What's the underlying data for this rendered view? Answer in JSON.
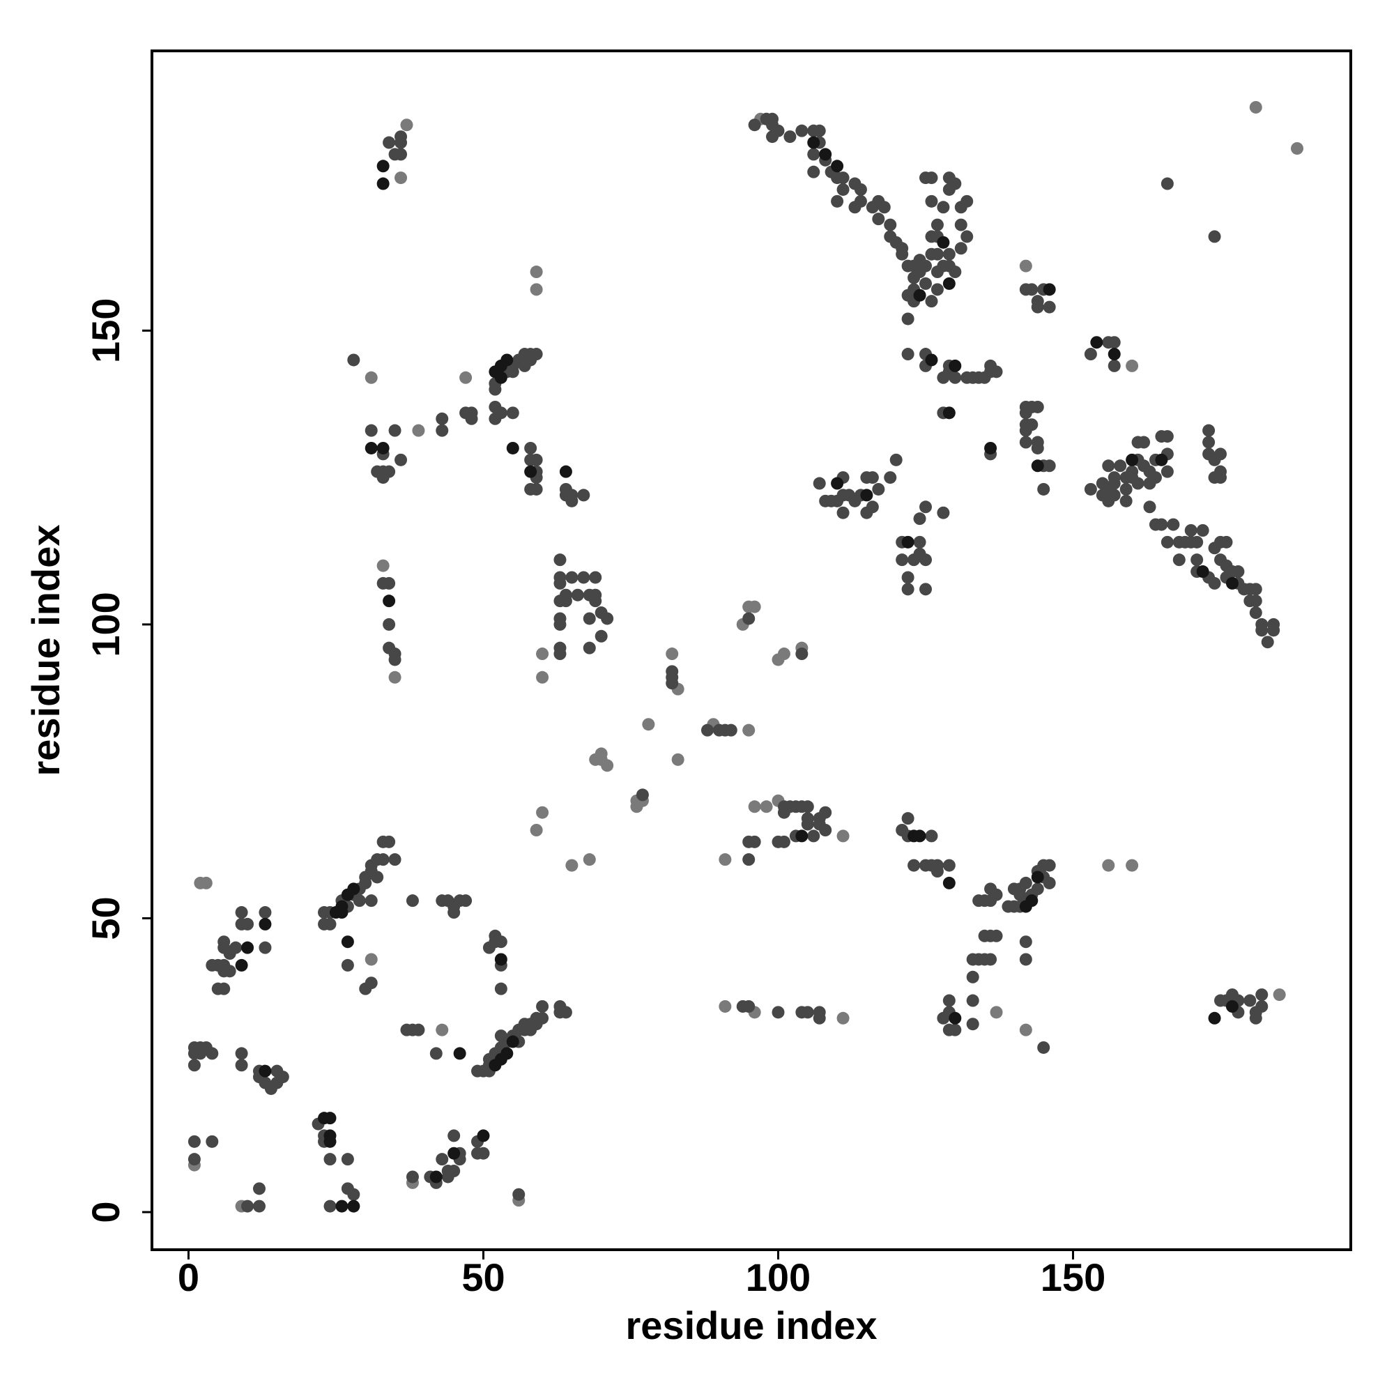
{
  "chart_data": {
    "type": "scatter",
    "x_label": "residue index",
    "y_label": "residue index",
    "xlim": [
      -6.2,
      197.1
    ],
    "ylim": [
      -6.4,
      197.6
    ],
    "xticks": [
      0,
      50,
      100,
      150
    ],
    "yticks": [
      0,
      50,
      100,
      150
    ],
    "series": [
      {
        "color": "#7a7a7a",
        "x": [
          2,
          3,
          1,
          9,
          78,
          69,
          70,
          70,
          71,
          76,
          77,
          76,
          82,
          83,
          83,
          89,
          95,
          94,
          95,
          96,
          100,
          101,
          104,
          59,
          59,
          31,
          39,
          47,
          35,
          33,
          60,
          60,
          59,
          60,
          65,
          68,
          91,
          96,
          111,
          91,
          96,
          98,
          100,
          181,
          188,
          142,
          160,
          156,
          160,
          185,
          37,
          36,
          97,
          111,
          38,
          56,
          142,
          137,
          31,
          43
        ],
        "values": [
          56,
          56,
          8,
          1,
          83,
          77,
          77,
          78,
          76,
          70,
          70,
          69,
          95,
          89,
          77,
          83,
          82,
          100,
          103,
          103,
          94,
          95,
          96,
          160,
          157,
          142,
          133,
          142,
          91,
          110,
          95,
          91,
          65,
          68,
          59,
          60,
          35,
          34,
          33,
          60,
          69,
          69,
          70,
          188,
          181,
          161,
          144,
          59,
          59,
          37,
          185,
          176,
          186,
          64,
          5,
          2,
          31,
          34,
          43,
          31
        ]
      },
      {
        "color": "#474747",
        "x": [
          1,
          2,
          3,
          1,
          2,
          4,
          1,
          1,
          1,
          4,
          10,
          12,
          12,
          9,
          9,
          12,
          12,
          13,
          15,
          15,
          16,
          14,
          4,
          5,
          6,
          5,
          6,
          6,
          7,
          6,
          7,
          6,
          8,
          9,
          9,
          10,
          13,
          22,
          23,
          23,
          24,
          27,
          24,
          27,
          28,
          23,
          24,
          26,
          27,
          28,
          29,
          29,
          30,
          30,
          31,
          31,
          32,
          32,
          33,
          33,
          34,
          35,
          31,
          23,
          24,
          27,
          30,
          31,
          38,
          43,
          44,
          45,
          45,
          46,
          47,
          37,
          38,
          39,
          42,
          38,
          41,
          42,
          43,
          44,
          45,
          46,
          46,
          45,
          44,
          49,
          49,
          50,
          49,
          51,
          51,
          52,
          53,
          54,
          55,
          56,
          56,
          57,
          57,
          58,
          58,
          59,
          59,
          60,
          60,
          63,
          64,
          63,
          53,
          50,
          51,
          51,
          52,
          52,
          53,
          53,
          53,
          56,
          77,
          82,
          82,
          82,
          88,
          90,
          91,
          92,
          95,
          104,
          95,
          95,
          96,
          101,
          101,
          102,
          103,
          104,
          105,
          105,
          105,
          107,
          107,
          108,
          108,
          103,
          101,
          100,
          106,
          94,
          95,
          100,
          104,
          105,
          107,
          107,
          34,
          35,
          36,
          36,
          36,
          28,
          31,
          33,
          32,
          33,
          34,
          33,
          35,
          36,
          43,
          43,
          47,
          48,
          48,
          33,
          34,
          34,
          34,
          35,
          35,
          54,
          55,
          55,
          56,
          57,
          57,
          58,
          58,
          59,
          52,
          52,
          52,
          52,
          53,
          55,
          58,
          58,
          59,
          59,
          58,
          59,
          59,
          64,
          64,
          65,
          65,
          67,
          63,
          63,
          63,
          63,
          64,
          63,
          63,
          63,
          63,
          64,
          65,
          66,
          67,
          68,
          68,
          68,
          69,
          69,
          69,
          70,
          70,
          71,
          96,
          98,
          99,
          99,
          99,
          100,
          102,
          104,
          106,
          107,
          107,
          106,
          106,
          108,
          109,
          110,
          111,
          110,
          111,
          113,
          114,
          113,
          114,
          116,
          117,
          117,
          118,
          119,
          119,
          120,
          121,
          121,
          122,
          123,
          124,
          123,
          124,
          122,
          123,
          123,
          125,
          125,
          126,
          126,
          127,
          127,
          127,
          128,
          129,
          129,
          130,
          131,
          131,
          132,
          132,
          130,
          129,
          129,
          126,
          125,
          126,
          128,
          131,
          122,
          126,
          127,
          127,
          166,
          174,
          142,
          143,
          144,
          144,
          145,
          146,
          153,
          156,
          157,
          157,
          122,
          125,
          125,
          128,
          129,
          129,
          130,
          132,
          133,
          134,
          135,
          136,
          136,
          137,
          128,
          136,
          142,
          142,
          142,
          142,
          142,
          143,
          143,
          144,
          144,
          144,
          145,
          145,
          146,
          153,
          155,
          155,
          156,
          156,
          156,
          157,
          157,
          157,
          158,
          159,
          159,
          159,
          160,
          160,
          161,
          161,
          161,
          162,
          162,
          163,
          163,
          163,
          164,
          164,
          164,
          165,
          165,
          166,
          166,
          166,
          166,
          167,
          168,
          169,
          170,
          171,
          171,
          172,
          170,
          173,
          173,
          173,
          174,
          174,
          175,
          175,
          175,
          175,
          176,
          174,
          175,
          176,
          176,
          177,
          178,
          178,
          179,
          180,
          180,
          181,
          181,
          181,
          182,
          182,
          183,
          184,
          184,
          107,
          108,
          109,
          110,
          111,
          111,
          111,
          112,
          113,
          114,
          115,
          115,
          116,
          116,
          117,
          119,
          120,
          125,
          124,
          128,
          121,
          121,
          122,
          122,
          123,
          124,
          124,
          125,
          125,
          168,
          173,
          174,
          121,
          122,
          122,
          126,
          123,
          125,
          126,
          127,
          127,
          129,
          134,
          135,
          136,
          136,
          137,
          139,
          140,
          141,
          141,
          142,
          143,
          144,
          144,
          145,
          145,
          146,
          146,
          142,
          141,
          140,
          135,
          136,
          137,
          134,
          135,
          136,
          133,
          133,
          133,
          133,
          129,
          130,
          129,
          128,
          129,
          142,
          142,
          145,
          175,
          176,
          177,
          178,
          178,
          180,
          181,
          182,
          182,
          181,
          171,
          13
        ],
        "values": [
          28,
          28,
          28,
          27,
          27,
          27,
          25,
          12,
          9,
          12,
          1,
          1,
          4,
          27,
          25,
          24,
          23,
          22,
          24,
          22,
          23,
          21,
          42,
          42,
          42,
          38,
          38,
          45,
          44,
          46,
          41,
          41,
          45,
          49,
          51,
          49,
          45,
          15,
          13,
          12,
          9,
          9,
          1,
          4,
          3,
          51,
          51,
          53,
          52,
          54,
          55,
          53,
          56,
          57,
          58,
          59,
          57,
          60,
          60,
          63,
          63,
          60,
          53,
          49,
          49,
          42,
          38,
          39,
          53,
          53,
          53,
          52,
          51,
          53,
          53,
          31,
          31,
          31,
          27,
          6,
          6,
          5,
          9,
          7,
          13,
          10,
          9,
          7,
          6,
          12,
          10,
          10,
          24,
          24,
          26,
          27,
          28,
          29,
          30,
          29,
          31,
          31,
          32,
          31,
          32,
          33,
          32,
          33,
          35,
          34,
          34,
          35,
          30,
          24,
          25,
          45,
          46,
          47,
          46,
          42,
          38,
          3,
          71,
          90,
          91,
          92,
          82,
          82,
          82,
          82,
          101,
          95,
          60,
          63,
          63,
          69,
          68,
          69,
          69,
          69,
          69,
          67,
          66,
          67,
          66,
          68,
          65,
          64,
          63,
          63,
          64,
          35,
          35,
          34,
          34,
          34,
          34,
          33,
          182,
          180,
          180,
          182,
          183,
          145,
          133,
          129,
          126,
          126,
          126,
          125,
          133,
          128,
          135,
          133,
          136,
          136,
          135,
          107,
          107,
          100,
          96,
          95,
          94,
          143,
          143,
          144,
          145,
          146,
          144,
          146,
          145,
          146,
          141,
          140,
          137,
          135,
          136,
          136,
          130,
          128,
          126,
          125,
          123,
          123,
          128,
          122,
          123,
          122,
          121,
          122,
          111,
          108,
          107,
          104,
          104,
          101,
          100,
          96,
          95,
          105,
          108,
          105,
          108,
          105,
          101,
          96,
          108,
          105,
          104,
          102,
          98,
          101,
          185,
          186,
          183,
          185,
          186,
          184,
          183,
          184,
          184,
          184,
          182,
          180,
          177,
          179,
          177,
          176,
          176,
          172,
          174,
          175,
          174,
          171,
          172,
          171,
          172,
          169,
          171,
          168,
          166,
          165,
          163,
          164,
          161,
          161,
          162,
          159,
          160,
          156,
          157,
          155,
          158,
          161,
          163,
          166,
          163,
          166,
          168,
          161,
          163,
          161,
          160,
          164,
          168,
          166,
          172,
          175,
          174,
          176,
          176,
          176,
          172,
          171,
          171,
          152,
          155,
          157,
          160,
          175,
          166,
          157,
          157,
          155,
          154,
          157,
          154,
          146,
          148,
          148,
          144,
          146,
          144,
          146,
          142,
          143,
          144,
          142,
          142,
          142,
          142,
          142,
          143,
          144,
          143,
          136,
          129,
          137,
          136,
          134,
          133,
          131,
          137,
          134,
          137,
          131,
          130,
          127,
          123,
          127,
          123,
          124,
          122,
          121,
          123,
          127,
          125,
          124,
          122,
          127,
          125,
          123,
          121,
          126,
          125,
          131,
          128,
          124,
          131,
          127,
          126,
          124,
          120,
          128,
          125,
          117,
          132,
          117,
          132,
          129,
          126,
          114,
          117,
          114,
          114,
          114,
          114,
          111,
          116,
          116,
          129,
          131,
          133,
          125,
          128,
          129,
          126,
          125,
          114,
          114,
          113,
          111,
          110,
          108,
          109,
          107,
          109,
          106,
          106,
          104,
          106,
          104,
          102,
          100,
          99,
          97,
          100,
          99,
          124,
          121,
          121,
          121,
          125,
          122,
          119,
          122,
          121,
          122,
          125,
          119,
          125,
          120,
          123,
          125,
          128,
          120,
          118,
          119,
          114,
          111,
          108,
          106,
          111,
          114,
          112,
          111,
          106,
          111,
          108,
          107,
          65,
          67,
          64,
          64,
          59,
          59,
          59,
          58,
          59,
          59,
          53,
          53,
          53,
          55,
          54,
          52,
          52,
          54,
          55,
          56,
          54,
          55,
          58,
          57,
          59,
          59,
          56,
          53,
          52,
          55,
          47,
          47,
          47,
          43,
          43,
          43,
          43,
          40,
          36,
          32,
          36,
          31,
          31,
          33,
          34,
          46,
          43,
          28,
          36,
          36,
          37,
          36,
          34,
          36,
          33,
          37,
          35,
          34,
          109,
          51
        ]
      },
      {
        "color": "#161616",
        "x": [
          23,
          24,
          24,
          24,
          26,
          27,
          28,
          25,
          26,
          27,
          46,
          42,
          45,
          50,
          52,
          53,
          54,
          55,
          53,
          9,
          10,
          13,
          13,
          26,
          28,
          33,
          33,
          54,
          53,
          55,
          58,
          64,
          34,
          106,
          108,
          110,
          124,
          128,
          129,
          146,
          154,
          157,
          126,
          130,
          129,
          136,
          144,
          160,
          165,
          172,
          177,
          124,
          123,
          129,
          143,
          142,
          144,
          130,
          177,
          174,
          104,
          110,
          115,
          122,
          52,
          53,
          33,
          31
        ],
        "values": [
          16,
          16,
          13,
          12,
          52,
          54,
          55,
          51,
          51,
          46,
          27,
          6,
          10,
          13,
          25,
          26,
          27,
          29,
          43,
          42,
          45,
          49,
          24,
          1,
          1,
          178,
          175,
          145,
          144,
          130,
          126,
          126,
          104,
          182,
          180,
          178,
          156,
          165,
          158,
          157,
          148,
          146,
          145,
          144,
          136,
          130,
          127,
          128,
          128,
          109,
          107,
          64,
          64,
          56,
          53,
          52,
          57,
          33,
          35,
          33,
          64,
          124,
          122,
          114,
          143,
          142,
          130,
          130
        ]
      }
    ]
  }
}
